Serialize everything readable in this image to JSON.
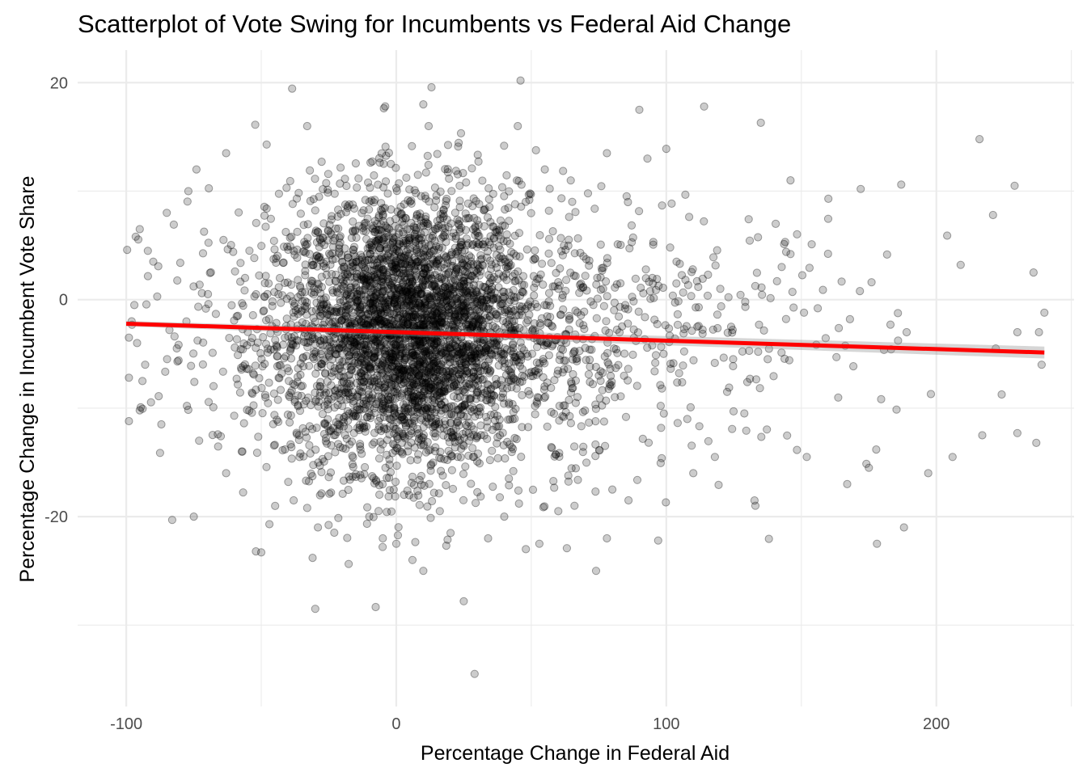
{
  "chart_data": {
    "type": "scatter",
    "title": "Scatterplot of Vote Swing for Incumbents vs Federal Aid Change",
    "xlabel": "Percentage Change in Federal Aid",
    "ylabel": "Percentage Change in Incumbent Vote Share",
    "xlim": [
      -118,
      251
    ],
    "ylim": [
      -37.5,
      23
    ],
    "x_ticks": [
      -100,
      0,
      100,
      200
    ],
    "x_tick_labels": [
      "-100",
      "0",
      "100",
      "200"
    ],
    "y_ticks": [
      -20,
      0,
      20
    ],
    "y_tick_labels": [
      "-20",
      "0",
      "20"
    ],
    "grid": true,
    "point_color": "#000000",
    "point_alpha": 0.2,
    "fit_line": {
      "method": "linear",
      "color": "#ff0000",
      "x_range": [
        -100,
        240
      ],
      "intercept": -3.0,
      "slope": -0.0078
    },
    "points": [
      [
        46,
        20.2
      ],
      [
        10,
        18
      ],
      [
        114,
        17.8
      ],
      [
        90,
        17.5
      ],
      [
        135,
        16.3
      ],
      [
        -33,
        16
      ],
      [
        12,
        16
      ],
      [
        45,
        16
      ],
      [
        216,
        14.8
      ],
      [
        -48,
        14.3
      ],
      [
        -63,
        13.5
      ],
      [
        78,
        13.5
      ],
      [
        100,
        13.9
      ],
      [
        93,
        13
      ],
      [
        -74,
        12
      ],
      [
        55,
        12
      ],
      [
        28,
        12.1
      ],
      [
        -2,
        12.5
      ],
      [
        8,
        11.5
      ],
      [
        187,
        10.6
      ],
      [
        229,
        10.5
      ],
      [
        146,
        11
      ],
      [
        -77,
        10
      ],
      [
        71,
        9.8
      ],
      [
        160,
        9.3
      ],
      [
        172,
        10.2
      ],
      [
        -85,
        8
      ],
      [
        -95,
        6.5
      ],
      [
        -92,
        4.5
      ],
      [
        -90,
        3.5
      ],
      [
        -97,
        -0.5
      ],
      [
        -98,
        -2
      ],
      [
        -99,
        -3.5
      ],
      [
        -96,
        -4
      ],
      [
        -93,
        -6
      ],
      [
        -94,
        -7.5
      ],
      [
        -99,
        -7.2
      ],
      [
        -99,
        -11.2
      ],
      [
        -95,
        -10.2
      ],
      [
        -87,
        -11.5
      ],
      [
        -83,
        -20.3
      ],
      [
        -75,
        -20
      ],
      [
        -73,
        -13
      ],
      [
        -63,
        -16
      ],
      [
        -57,
        -14
      ],
      [
        -52,
        -23.2
      ],
      [
        -50,
        -23.3
      ],
      [
        -47,
        -20.7
      ],
      [
        -40,
        -16.8
      ],
      [
        -38,
        -18.5
      ],
      [
        -33,
        -19.2
      ],
      [
        -31,
        -23.8
      ],
      [
        -30,
        -28.5
      ],
      [
        -29,
        -21
      ],
      [
        -10,
        -20
      ],
      [
        -5,
        -22
      ],
      [
        0,
        -22.5
      ],
      [
        6,
        -24
      ],
      [
        10,
        -25
      ],
      [
        25,
        -27.8
      ],
      [
        29,
        -34.5
      ],
      [
        34,
        -22
      ],
      [
        40,
        -20
      ],
      [
        48,
        -23
      ],
      [
        53,
        -22.5
      ],
      [
        60,
        -19.5
      ],
      [
        66,
        -19
      ],
      [
        74,
        -25
      ],
      [
        78,
        -22
      ],
      [
        80,
        -17.5
      ],
      [
        86,
        -18.5
      ],
      [
        97,
        -22.2
      ],
      [
        110,
        -16
      ],
      [
        118,
        -14.5
      ],
      [
        133,
        -19
      ],
      [
        152,
        -14.5
      ],
      [
        167,
        -17
      ],
      [
        175,
        -15.5
      ],
      [
        178,
        -22.5
      ],
      [
        188,
        -21
      ],
      [
        197,
        -16
      ],
      [
        206,
        -14.5
      ],
      [
        217,
        -12.5
      ],
      [
        230,
        -12.3
      ],
      [
        237,
        -13.2
      ],
      [
        239,
        -6
      ],
      [
        240,
        -1.2
      ],
      [
        238,
        -3
      ],
      [
        236,
        2.5
      ],
      [
        230,
        -3
      ],
      [
        222,
        -4.5
      ],
      [
        221,
        7.8
      ],
      [
        209,
        3.2
      ],
      [
        204,
        5.9
      ],
      [
        198,
        -8.7
      ],
      [
        189,
        -3
      ],
      [
        183,
        -2.3
      ],
      [
        176,
        1.6
      ],
      [
        168,
        -1.8
      ],
      [
        163,
        -5.3
      ],
      [
        158,
        0.9
      ],
      [
        151,
        -1.2
      ],
      [
        146,
        4.2
      ],
      [
        141,
        1.7
      ],
      [
        134,
        -4.8
      ],
      [
        130,
        -7.6
      ],
      [
        124,
        -2.5
      ],
      [
        120,
        1
      ],
      [
        112,
        -0.7
      ],
      [
        105,
        3.3
      ],
      [
        99,
        -5
      ],
      [
        95,
        1.5
      ],
      [
        88,
        -3.5
      ],
      [
        82,
        5.1
      ],
      [
        75,
        -7
      ],
      [
        70,
        2.2
      ],
      [
        64,
        -1.5
      ],
      [
        58,
        6.3
      ],
      [
        52,
        -9.4
      ],
      [
        44,
        8.8
      ],
      [
        38,
        -4.2
      ],
      [
        33,
        1.1
      ],
      [
        27,
        -13
      ],
      [
        23,
        7
      ],
      [
        18,
        -2.6
      ],
      [
        14,
        -17.8
      ],
      [
        9,
        4.3
      ],
      [
        5,
        -11.4
      ],
      [
        1,
        0.9
      ],
      [
        -4,
        -15.5
      ],
      [
        -8,
        9.2
      ],
      [
        -12,
        -6.6
      ],
      [
        -16,
        3.1
      ],
      [
        -20,
        -9.8
      ],
      [
        -24,
        6
      ],
      [
        -28,
        -3.8
      ],
      [
        -32,
        1.3
      ],
      [
        -36,
        -12.5
      ],
      [
        -40,
        4.6
      ],
      [
        -44,
        -5.2
      ],
      [
        -48,
        8.4
      ],
      [
        -52,
        -8.3
      ],
      [
        -56,
        2
      ],
      [
        -60,
        -10.7
      ],
      [
        -64,
        5.5
      ],
      [
        -68,
        -4.9
      ],
      [
        -72,
        0.6
      ],
      [
        -76,
        -6.1
      ],
      [
        -80,
        3.4
      ],
      [
        -84,
        -2.8
      ],
      [
        -88,
        -8.9
      ]
    ]
  }
}
